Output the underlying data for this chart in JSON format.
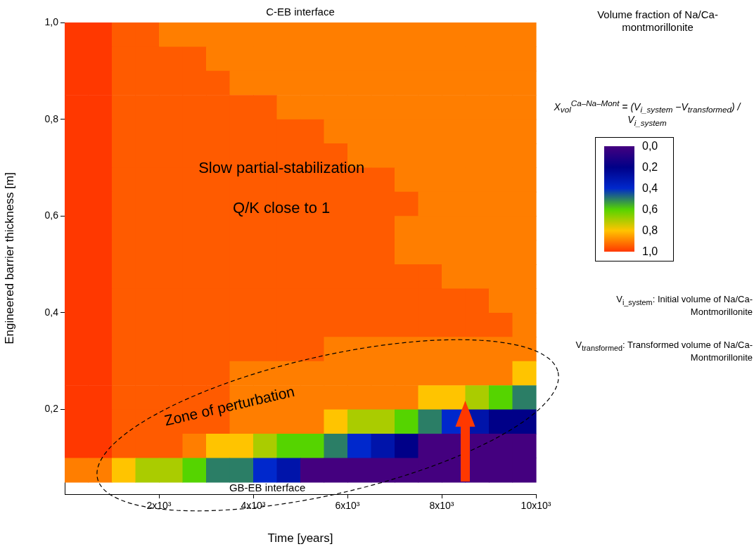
{
  "chart_data": {
    "type": "heatmap",
    "title": "C-EB interface",
    "xlabel": "Time [years]",
    "ylabel": "Engineered barrier thickness [m]",
    "clabel": "Volume fraction of Na/Ca-montmorillonite",
    "x": [
      250,
      750,
      1250,
      1750,
      2250,
      2750,
      3250,
      3750,
      4250,
      4750,
      5250,
      5750,
      6250,
      6750,
      7250,
      7750,
      8250,
      8750,
      9250,
      9750
    ],
    "y": [
      0.975,
      0.925,
      0.875,
      0.825,
      0.775,
      0.725,
      0.675,
      0.625,
      0.575,
      0.525,
      0.475,
      0.425,
      0.375,
      0.325,
      0.275,
      0.225,
      0.175,
      0.125,
      0.075
    ],
    "cells": [
      [
        1,
        1,
        0.95,
        0.95,
        0.9,
        0.9,
        0.9,
        0.9,
        0.9,
        0.9,
        0.9,
        0.9,
        0.9,
        0.9,
        0.9,
        0.9,
        0.9,
        0.9,
        0.9,
        0.9
      ],
      [
        1,
        1,
        0.95,
        0.95,
        0.95,
        0.95,
        0.9,
        0.9,
        0.9,
        0.9,
        0.9,
        0.9,
        0.9,
        0.9,
        0.9,
        0.9,
        0.9,
        0.9,
        0.9,
        0.9
      ],
      [
        1,
        1,
        0.95,
        0.95,
        0.95,
        0.95,
        0.95,
        0.9,
        0.9,
        0.9,
        0.9,
        0.9,
        0.9,
        0.9,
        0.9,
        0.9,
        0.9,
        0.9,
        0.9,
        0.9
      ],
      [
        1,
        1,
        0.95,
        0.95,
        0.95,
        0.95,
        0.95,
        0.95,
        0.95,
        0.9,
        0.9,
        0.9,
        0.9,
        0.9,
        0.9,
        0.9,
        0.9,
        0.9,
        0.9,
        0.9
      ],
      [
        1,
        1,
        0.95,
        0.95,
        0.95,
        0.95,
        0.95,
        0.95,
        0.95,
        0.95,
        0.95,
        0.9,
        0.9,
        0.9,
        0.9,
        0.9,
        0.9,
        0.9,
        0.9,
        0.9
      ],
      [
        1,
        1,
        0.95,
        0.95,
        0.95,
        0.95,
        0.95,
        0.95,
        0.95,
        0.95,
        0.95,
        0.95,
        0.9,
        0.9,
        0.9,
        0.9,
        0.9,
        0.9,
        0.9,
        0.9
      ],
      [
        1,
        1,
        0.95,
        0.95,
        0.95,
        0.95,
        0.95,
        0.95,
        0.95,
        0.95,
        0.95,
        0.95,
        0.95,
        0.95,
        0.9,
        0.9,
        0.9,
        0.9,
        0.9,
        0.9
      ],
      [
        1,
        1,
        0.95,
        0.95,
        0.95,
        0.95,
        0.95,
        0.95,
        0.95,
        0.95,
        0.95,
        0.95,
        0.95,
        0.95,
        0.95,
        0.9,
        0.9,
        0.9,
        0.9,
        0.9
      ],
      [
        1,
        1,
        0.95,
        0.95,
        0.95,
        0.95,
        0.95,
        0.95,
        0.95,
        0.95,
        0.95,
        0.95,
        0.95,
        0.95,
        0.9,
        0.9,
        0.9,
        0.9,
        0.9,
        0.9
      ],
      [
        1,
        1,
        0.95,
        0.95,
        0.95,
        0.95,
        0.95,
        0.95,
        0.95,
        0.95,
        0.95,
        0.95,
        0.95,
        0.95,
        0.9,
        0.9,
        0.9,
        0.9,
        0.9,
        0.9
      ],
      [
        1,
        1,
        0.95,
        0.95,
        0.95,
        0.95,
        0.95,
        0.95,
        0.95,
        0.95,
        0.95,
        0.95,
        0.95,
        0.95,
        0.95,
        0.95,
        0.9,
        0.9,
        0.9,
        0.9
      ],
      [
        1,
        1,
        0.95,
        0.95,
        0.95,
        0.95,
        0.95,
        0.95,
        0.95,
        0.95,
        0.95,
        0.95,
        0.95,
        0.95,
        0.95,
        0.95,
        0.95,
        0.95,
        0.9,
        0.9
      ],
      [
        1,
        1,
        0.95,
        0.95,
        0.95,
        0.95,
        0.95,
        0.95,
        0.95,
        0.95,
        0.95,
        0.95,
        0.95,
        0.95,
        0.95,
        0.95,
        0.95,
        0.95,
        0.95,
        0.9
      ],
      [
        1,
        1,
        0.95,
        0.95,
        0.95,
        0.95,
        0.95,
        0.95,
        0.95,
        0.95,
        0.95,
        0.9,
        0.9,
        0.9,
        0.9,
        0.9,
        0.9,
        0.9,
        0.9,
        0.9
      ],
      [
        1,
        1,
        0.95,
        0.95,
        0.95,
        0.95,
        0.95,
        0.9,
        0.9,
        0.9,
        0.9,
        0.9,
        0.9,
        0.9,
        0.9,
        0.9,
        0.9,
        0.9,
        0.9,
        0.8
      ],
      [
        1,
        1,
        0.95,
        0.95,
        0.95,
        0.95,
        0.95,
        0.9,
        0.9,
        0.9,
        0.9,
        0.9,
        0.9,
        0.9,
        0.9,
        0.8,
        0.8,
        0.7,
        0.6,
        0.5
      ],
      [
        1,
        1,
        0.95,
        0.95,
        0.95,
        0.95,
        0.95,
        0.9,
        0.9,
        0.9,
        0.9,
        0.8,
        0.7,
        0.7,
        0.6,
        0.5,
        0.4,
        0.3,
        0.2,
        0.2
      ],
      [
        1,
        1,
        0.95,
        0.95,
        0.95,
        0.9,
        0.8,
        0.8,
        0.7,
        0.6,
        0.6,
        0.5,
        0.4,
        0.3,
        0.2,
        0,
        0,
        0,
        0,
        0
      ],
      [
        0.9,
        0.9,
        0.8,
        0.7,
        0.7,
        0.6,
        0.5,
        0.5,
        0.4,
        0.3,
        0,
        0,
        0,
        0,
        0,
        0,
        0,
        0,
        0,
        0
      ]
    ],
    "clim": [
      0,
      1
    ],
    "cticks": [
      {
        "value": 0,
        "label": "0,0"
      },
      {
        "value": 0.2,
        "label": "0,2"
      },
      {
        "value": 0.4,
        "label": "0,4"
      },
      {
        "value": 0.6,
        "label": "0,6"
      },
      {
        "value": 0.8,
        "label": "0,8"
      },
      {
        "value": 1,
        "label": "1,0"
      }
    ],
    "colors": [
      "#44007f",
      "#000088",
      "#0028cc",
      "#55d400",
      "#ffc400",
      "#ff3800"
    ],
    "xlim": [
      0,
      10000
    ],
    "ylim": [
      0.025,
      1.0
    ],
    "xticks": [
      {
        "value": 2000,
        "label": "2x10³"
      },
      {
        "value": 4000,
        "label": "4x10³"
      },
      {
        "value": 6000,
        "label": "6x10³"
      },
      {
        "value": 8000,
        "label": "8x10³"
      },
      {
        "value": 10000,
        "label": "10x10³"
      }
    ],
    "yticks": [
      {
        "value": 0.2,
        "label": "0,2"
      },
      {
        "value": 0.4,
        "label": "0,4"
      },
      {
        "value": 0.6,
        "label": "0,6"
      },
      {
        "value": 0.8,
        "label": "0,8"
      },
      {
        "value": 1.0,
        "label": "1,0"
      }
    ],
    "grid": false,
    "annotations": [
      "Slow partial-stabilization",
      "Q/K close to 1",
      "Zone of perturbation",
      "GB-EB interface",
      "X$_{vol}$$^{Ca–Na–Mont}$ = (V$_{i_system}$ −V$_{transformed}$) / V$_{i_system}$",
      "V$_{i_system}$: Initial volume of Na/Ca-Montmorillonite",
      "V$_{transformed}$: Transformed volume of Na/Ca-Montmorillonite"
    ]
  }
}
